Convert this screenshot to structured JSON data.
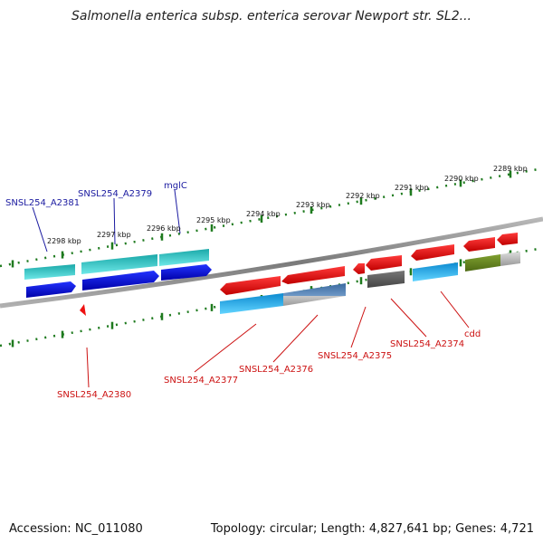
{
  "title": "Salmonella enterica subsp. enterica serovar Newport str. SL2...",
  "footer": {
    "accession_label": "Accession: NC_011080",
    "topology_label": "Topology: circular; Length: 4,827,641 bp; Genes: 4,721"
  },
  "scale_labels": [
    "2298 kbp",
    "2297 kbp",
    "2296 kbp",
    "2295 kbp",
    "2294 kbp",
    "2293 kbp",
    "2292 kbp",
    "2291 kbp",
    "2290 kbp",
    "2289 kbp"
  ],
  "forward_gene_labels": [
    "SNSL254_A2381",
    "SNSL254_A2379",
    "mglC"
  ],
  "reverse_gene_labels": [
    "SNSL254_A2380",
    "SNSL254_A2377",
    "SNSL254_A2376",
    "SNSL254_A2375",
    "SNSL254_A2374",
    "cdd"
  ],
  "colors": {
    "forward_label": "#1a1aa0",
    "reverse_label": "#cc1111",
    "forward_gene": "#0a14e0",
    "reverse_gene": "#ee1111",
    "cds_cyan": "#22c8c8",
    "cds_blue": "#18b0e8",
    "cds_olive": "#6b8e23",
    "cds_grey": "#666666",
    "cds_steel": "#4a78a8",
    "scale_tick": "#1e7a1e",
    "backbone": "#888888"
  }
}
